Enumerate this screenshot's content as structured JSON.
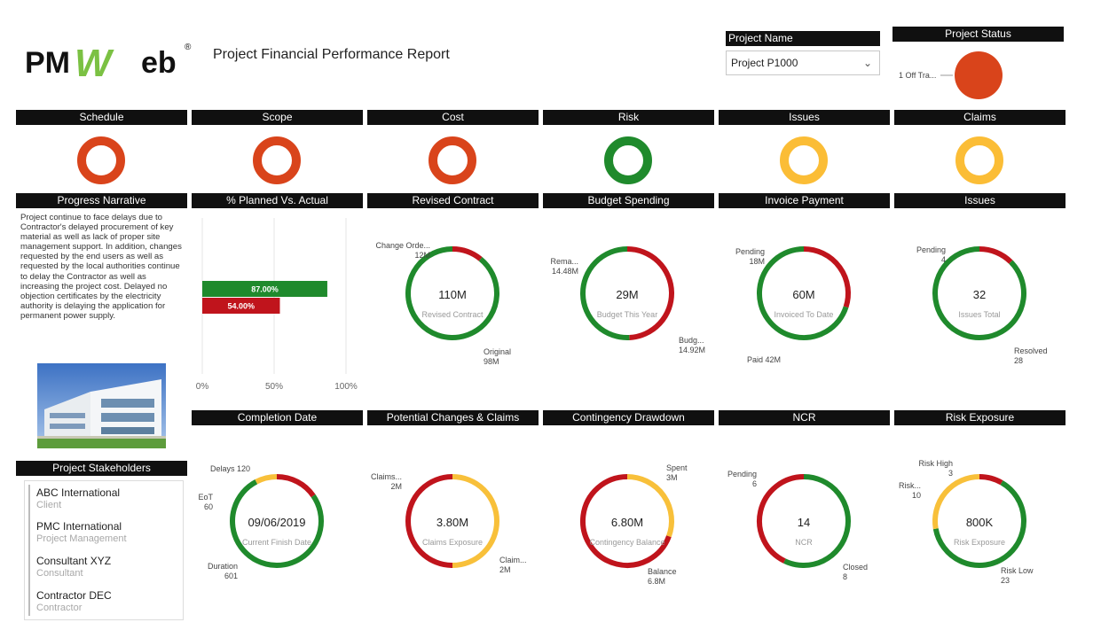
{
  "brand": {
    "logo_text_left": "PM",
    "logo_text_w": "W",
    "logo_text_right": "eb",
    "registered": "®"
  },
  "report_title": "Project Financial Performance Report",
  "project_name": {
    "header": "Project Name",
    "value": "Project P1000"
  },
  "project_status": {
    "header": "Project Status",
    "label": "1 Off Tra...",
    "color": "#d9441b"
  },
  "colors": {
    "red": "#c0141c",
    "green": "#1f8a2c",
    "amber": "#f8c03a",
    "status_red": "#d9441b",
    "status_amber": "#fbbd36"
  },
  "status_indicators": [
    {
      "label": "Schedule",
      "color": "#d9441b"
    },
    {
      "label": "Scope",
      "color": "#d9441b"
    },
    {
      "label": "Cost",
      "color": "#d9441b"
    },
    {
      "label": "Risk",
      "color": "#1f8a2c"
    },
    {
      "label": "Issues",
      "color": "#fbbd36"
    },
    {
      "label": "Claims",
      "color": "#fbbd36"
    }
  ],
  "progress_narrative": {
    "header": "Progress Narrative",
    "text": "Project continue to face delays due to Contractor's delayed procurement of key material as well as lack of proper site management support. In addition, changes requested by the end users as well as requested by the local authorities continue to delay the Contractor as well as increasing the project cost. Delayed no objection certificates by the electricity authority is delaying the application for permanent power supply."
  },
  "planned_vs_actual": {
    "header": "% Planned Vs. Actual",
    "chart_data": {
      "type": "bar",
      "orientation": "horizontal",
      "values": [
        87,
        54
      ],
      "value_labels": [
        "87.00%",
        "54.00%"
      ],
      "colors": [
        "#1f8a2c",
        "#c0141c"
      ],
      "xlim": [
        0,
        100
      ],
      "ticks": [
        "0%",
        "50%",
        "100%"
      ]
    }
  },
  "stakeholders": {
    "header": "Project Stakeholders",
    "items": [
      {
        "name": "ABC International",
        "role": "Client"
      },
      {
        "name": "PMC International",
        "role": "Project Management"
      },
      {
        "name": "Consultant XYZ",
        "role": "Consultant"
      },
      {
        "name": "Contractor DEC",
        "role": "Contractor"
      }
    ]
  },
  "donuts": [
    {
      "header": "Revised Contract",
      "center_value": "110M",
      "center_label": "Revised Contract",
      "segments": [
        {
          "name": "Change Orde...",
          "value": 12,
          "color": "#c0141c",
          "label": "Change Orde...",
          "value_label": "12M"
        },
        {
          "name": "Original",
          "value": 98,
          "color": "#1f8a2c",
          "label": "Original",
          "value_label": "98M"
        }
      ]
    },
    {
      "header": "Budget Spending",
      "center_value": "29M",
      "center_label": "Budget This Year",
      "segments": [
        {
          "name": "Rema...",
          "value": 14.48,
          "color": "#c0141c",
          "label": "Rema...",
          "value_label": "14.48M"
        },
        {
          "name": "Budg...",
          "value": 14.92,
          "color": "#1f8a2c",
          "label": "Budg...",
          "value_label": "14.92M"
        }
      ]
    },
    {
      "header": "Invoice Payment",
      "center_value": "60M",
      "center_label": "Invoiced To Date",
      "segments": [
        {
          "name": "Pending",
          "value": 18,
          "color": "#c0141c",
          "label": "Pending",
          "value_label": "18M"
        },
        {
          "name": "Paid",
          "value": 42,
          "color": "#1f8a2c",
          "label": "Paid 42M",
          "value_label": ""
        }
      ]
    },
    {
      "header": "Issues",
      "center_value": "32",
      "center_label": "Issues Total",
      "segments": [
        {
          "name": "Pending",
          "value": 4,
          "color": "#c0141c",
          "label": "Pending",
          "value_label": "4"
        },
        {
          "name": "Resolved",
          "value": 28,
          "color": "#1f8a2c",
          "label": "Resolved",
          "value_label": "28"
        }
      ]
    },
    {
      "header": "Completion Date",
      "center_value": "09/06/2019",
      "center_label": "Current Finish Date",
      "segments": [
        {
          "name": "Delays",
          "value": 120,
          "color": "#c0141c",
          "label": "Delays 120",
          "value_label": ""
        },
        {
          "name": "Duration",
          "value": 601,
          "color": "#1f8a2c",
          "label": "Duration",
          "value_label": "601"
        },
        {
          "name": "EoT",
          "value": 60,
          "color": "#f8c03a",
          "label": "EoT",
          "value_label": "60"
        }
      ]
    },
    {
      "header": "Potential Changes & Claims",
      "center_value": "3.80M",
      "center_label": "Claims Exposure",
      "segments": [
        {
          "name": "Claims...",
          "value": 2,
          "color": "#f8c03a",
          "label": "Claims...",
          "value_label": "2M"
        },
        {
          "name": "Claim...",
          "value": 2,
          "color": "#c0141c",
          "label": "Claim...",
          "value_label": "2M"
        }
      ]
    },
    {
      "header": "Contingency Drawdown",
      "center_value": "6.80M",
      "center_label": "Contingency Balance",
      "segments": [
        {
          "name": "Spent",
          "value": 3,
          "color": "#f8c03a",
          "label": "Spent",
          "value_label": "3M"
        },
        {
          "name": "Balance",
          "value": 6.8,
          "color": "#c0141c",
          "label": "Balance",
          "value_label": "6.8M"
        }
      ]
    },
    {
      "header": "NCR",
      "center_value": "14",
      "center_label": "NCR",
      "segments": [
        {
          "name": "Closed",
          "value": 8,
          "color": "#1f8a2c",
          "label": "Closed",
          "value_label": "8"
        },
        {
          "name": "Pending",
          "value": 6,
          "color": "#c0141c",
          "label": "Pending",
          "value_label": "6"
        }
      ]
    },
    {
      "header": "Risk Exposure",
      "center_value": "800K",
      "center_label": "Risk Exposure",
      "segments": [
        {
          "name": "Risk High",
          "value": 3,
          "color": "#c0141c",
          "label": "Risk High",
          "value_label": "3"
        },
        {
          "name": "Risk Low",
          "value": 23,
          "color": "#1f8a2c",
          "label": "Risk Low",
          "value_label": "23"
        },
        {
          "name": "Risk...",
          "value": 10,
          "color": "#f8c03a",
          "label": "Risk...",
          "value_label": "10"
        }
      ]
    }
  ]
}
